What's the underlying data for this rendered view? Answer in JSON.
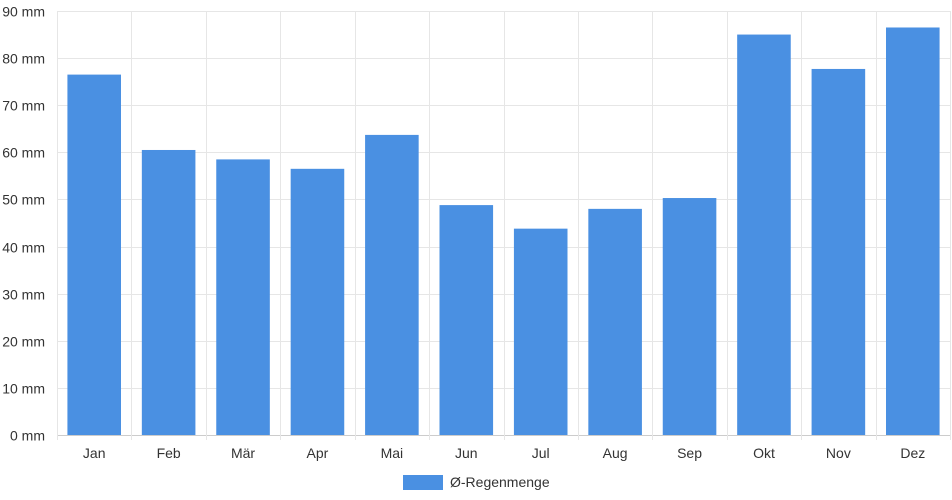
{
  "chart_data": {
    "type": "bar",
    "categories": [
      "Jan",
      "Feb",
      "Mär",
      "Apr",
      "Mai",
      "Jun",
      "Jul",
      "Aug",
      "Sep",
      "Okt",
      "Nov",
      "Dez"
    ],
    "series": [
      {
        "name": "Ø-Regenmenge",
        "color": "#4a90e2",
        "values": [
          76.5,
          60.5,
          58.5,
          56.5,
          63.7,
          48.8,
          43.8,
          48.0,
          50.3,
          85.0,
          77.7,
          86.5
        ]
      }
    ],
    "y_unit": "mm",
    "y_ticks": [
      "0 mm",
      "10 mm",
      "20 mm",
      "30 mm",
      "40 mm",
      "50 mm",
      "60 mm",
      "70 mm",
      "80 mm",
      "90 mm"
    ],
    "ylim": [
      0,
      90
    ],
    "grid": true,
    "legend_position": "bottom"
  }
}
